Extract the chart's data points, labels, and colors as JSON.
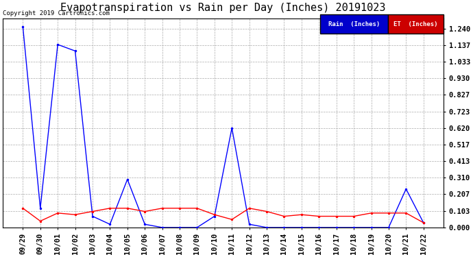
{
  "title": "Evapotranspiration vs Rain per Day (Inches) 20191023",
  "copyright": "Copyright 2019 Cartronics.com",
  "background_color": "#ffffff",
  "grid_color": "#aaaaaa",
  "x_labels": [
    "09/29",
    "09/30",
    "10/01",
    "10/02",
    "10/03",
    "10/04",
    "10/05",
    "10/06",
    "10/07",
    "10/08",
    "10/09",
    "10/10",
    "10/11",
    "10/12",
    "10/13",
    "10/14",
    "10/15",
    "10/16",
    "10/17",
    "10/18",
    "10/19",
    "10/20",
    "10/21",
    "10/22"
  ],
  "rain_inches": [
    1.25,
    0.12,
    1.14,
    1.1,
    0.07,
    0.02,
    0.3,
    0.02,
    0.0,
    0.0,
    0.0,
    0.07,
    0.62,
    0.02,
    0.0,
    0.0,
    0.0,
    0.0,
    0.0,
    0.0,
    0.0,
    0.0,
    0.24,
    0.03
  ],
  "et_inches": [
    0.12,
    0.04,
    0.09,
    0.08,
    0.1,
    0.12,
    0.12,
    0.1,
    0.12,
    0.12,
    0.12,
    0.08,
    0.05,
    0.12,
    0.1,
    0.07,
    0.08,
    0.07,
    0.07,
    0.07,
    0.09,
    0.09,
    0.09,
    0.03
  ],
  "rain_color": "#0000ff",
  "et_color": "#ff0000",
  "ylim": [
    0.0,
    1.3
  ],
  "yticks": [
    0.0,
    0.103,
    0.207,
    0.31,
    0.413,
    0.517,
    0.62,
    0.723,
    0.827,
    0.93,
    1.033,
    1.137,
    1.24
  ],
  "title_fontsize": 11,
  "tick_fontsize": 7.5,
  "copyright_fontsize": 6.5,
  "legend_rain_label": "Rain  (Inches)",
  "legend_et_label": "ET  (Inches)",
  "marker": ".",
  "marker_size": 3,
  "line_width": 1.0
}
